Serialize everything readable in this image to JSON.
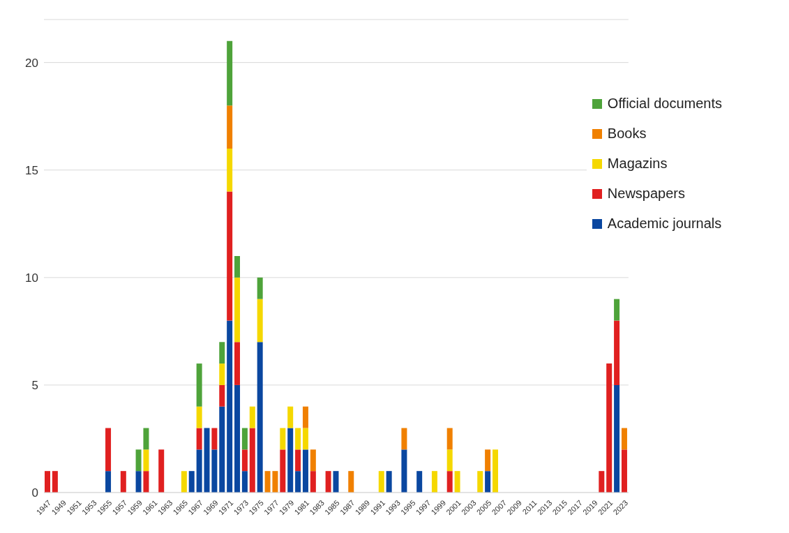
{
  "chart_data": {
    "type": "bar",
    "stacked": true,
    "grid": "y",
    "legend": "top right",
    "categories": [
      "1947",
      null,
      "1949",
      null,
      "1951",
      null,
      "1953",
      null,
      "1955",
      null,
      "1957",
      null,
      "1959",
      null,
      "1961",
      null,
      "1963",
      null,
      "1965",
      null,
      "1967",
      null,
      "1969",
      null,
      "1971",
      null,
      "1973",
      null,
      "1975",
      null,
      "1977",
      null,
      "1979",
      null,
      "1981",
      null,
      "1983",
      null,
      "1985",
      null,
      "1987",
      null,
      "1989",
      null,
      "1991",
      null,
      "1993",
      null,
      "1995",
      null,
      "1997",
      null,
      "1999",
      null,
      "2001",
      null,
      "2003",
      null,
      "2005",
      null,
      "2007",
      null,
      "2009",
      null,
      "2011",
      null,
      "2013",
      null,
      "2015",
      null,
      "2017",
      null,
      "2019",
      null,
      "2021",
      null,
      "2023"
    ],
    "ylim": [
      0,
      22
    ],
    "yticks": [
      0,
      5,
      10,
      15,
      20
    ],
    "series": [
      {
        "name": "Academic journals",
        "color": "#0a47a0",
        "values": [
          0,
          0,
          0,
          0,
          0,
          0,
          0,
          0,
          1,
          0,
          0,
          0,
          1,
          0,
          0,
          0,
          0,
          0,
          0,
          1,
          2,
          3,
          2,
          4,
          8,
          5,
          1,
          0,
          7,
          0,
          0,
          0,
          3,
          1,
          2,
          0,
          0,
          0,
          1,
          0,
          0,
          0,
          0,
          0,
          0,
          1,
          0,
          2,
          0,
          1,
          0,
          0,
          0,
          0,
          0,
          0,
          0,
          0,
          1,
          0,
          0,
          0,
          0,
          0,
          0,
          0,
          0,
          0,
          0,
          0,
          0,
          0,
          0,
          0,
          0,
          5,
          0
        ]
      },
      {
        "name": "Newspapers",
        "color": "#e02020",
        "values": [
          1,
          1,
          0,
          0,
          0,
          0,
          0,
          0,
          2,
          0,
          1,
          0,
          0,
          1,
          0,
          2,
          0,
          0,
          0,
          0,
          1,
          0,
          1,
          1,
          6,
          2,
          1,
          3,
          0,
          0,
          0,
          2,
          0,
          1,
          0,
          1,
          0,
          1,
          0,
          0,
          0,
          0,
          0,
          0,
          0,
          0,
          0,
          0,
          0,
          0,
          0,
          0,
          0,
          1,
          0,
          0,
          0,
          0,
          0,
          0,
          0,
          0,
          0,
          0,
          0,
          0,
          0,
          0,
          0,
          0,
          0,
          0,
          0,
          1,
          6,
          3,
          2
        ]
      },
      {
        "name": "Magazins",
        "color": "#f5d800",
        "values": [
          0,
          0,
          0,
          0,
          0,
          0,
          0,
          0,
          0,
          0,
          0,
          0,
          0,
          1,
          0,
          0,
          0,
          0,
          1,
          0,
          1,
          0,
          0,
          1,
          2,
          3,
          0,
          1,
          2,
          0,
          0,
          1,
          1,
          1,
          1,
          0,
          0,
          0,
          0,
          0,
          0,
          0,
          0,
          0,
          1,
          0,
          0,
          0,
          0,
          0,
          0,
          1,
          0,
          1,
          1,
          0,
          0,
          1,
          0,
          2,
          0,
          0,
          0,
          0,
          0,
          0,
          0,
          0,
          0,
          0,
          0,
          0,
          0,
          0,
          0,
          0,
          0
        ]
      },
      {
        "name": "Books",
        "color": "#f08000",
        "values": [
          0,
          0,
          0,
          0,
          0,
          0,
          0,
          0,
          0,
          0,
          0,
          0,
          0,
          0,
          0,
          0,
          0,
          0,
          0,
          0,
          0,
          0,
          0,
          0,
          2,
          0,
          0,
          0,
          0,
          1,
          1,
          0,
          0,
          0,
          1,
          1,
          0,
          0,
          0,
          0,
          1,
          0,
          0,
          0,
          0,
          0,
          0,
          1,
          0,
          0,
          0,
          0,
          0,
          1,
          0,
          0,
          0,
          0,
          1,
          0,
          0,
          0,
          0,
          0,
          0,
          0,
          0,
          0,
          0,
          0,
          0,
          0,
          0,
          0,
          0,
          0,
          1
        ]
      },
      {
        "name": "Official documents",
        "color": "#4ea33a",
        "values": [
          0,
          0,
          0,
          0,
          0,
          0,
          0,
          0,
          0,
          0,
          0,
          0,
          1,
          1,
          0,
          0,
          0,
          0,
          0,
          0,
          2,
          0,
          0,
          1,
          3,
          1,
          1,
          0,
          1,
          0,
          0,
          0,
          0,
          0,
          0,
          0,
          0,
          0,
          0,
          0,
          0,
          0,
          0,
          0,
          0,
          0,
          0,
          0,
          0,
          0,
          0,
          0,
          0,
          0,
          0,
          0,
          0,
          0,
          0,
          0,
          0,
          0,
          0,
          0,
          0,
          0,
          0,
          0,
          0,
          0,
          0,
          0,
          0,
          0,
          0,
          1,
          0
        ]
      }
    ]
  }
}
